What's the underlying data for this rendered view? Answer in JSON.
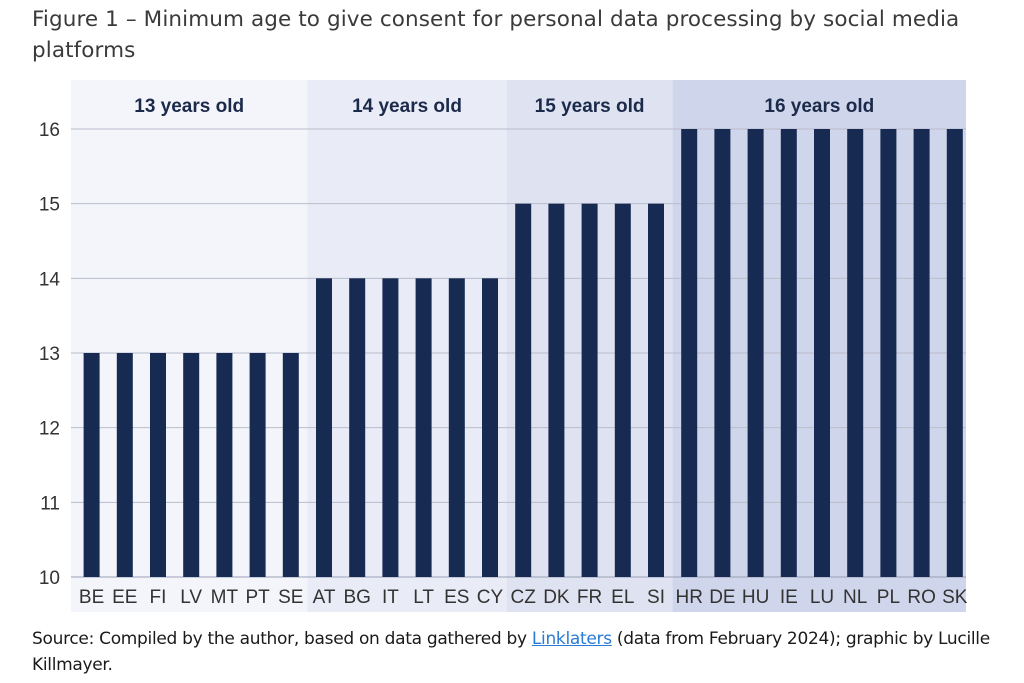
{
  "figure": {
    "title": "Figure 1 – Minimum age to give consent for personal data processing by social media platforms"
  },
  "source": {
    "prefix": "Source: Compiled by the author, based on data gathered by ",
    "link_text": "Linklaters",
    "suffix": " (data from February 2024); graphic by Lucille Killmayer."
  },
  "colors": {
    "bar": "#172a52",
    "group_bands": [
      "#f4f5fb",
      "#e9ebf6",
      "#dfe3f1",
      "#cfd5ea"
    ],
    "grid": "#b9bccb"
  },
  "chart_data": {
    "type": "bar",
    "title": "Minimum age to give consent for personal data processing by social media platforms",
    "xlabel": "",
    "ylabel": "",
    "ylim": [
      10,
      16
    ],
    "yticks": [
      10,
      11,
      12,
      13,
      14,
      15,
      16
    ],
    "grid": true,
    "legend": "none",
    "categories": [
      "BE",
      "EE",
      "FI",
      "LV",
      "MT",
      "PT",
      "SE",
      "AT",
      "BG",
      "IT",
      "LT",
      "ES",
      "CY",
      "CZ",
      "DK",
      "FR",
      "EL",
      "SI",
      "HR",
      "DE",
      "HU",
      "IE",
      "LU",
      "NL",
      "PL",
      "RO",
      "SK"
    ],
    "values": [
      13,
      13,
      13,
      13,
      13,
      13,
      13,
      14,
      14,
      14,
      14,
      14,
      14,
      15,
      15,
      15,
      15,
      15,
      16,
      16,
      16,
      16,
      16,
      16,
      16,
      16,
      16
    ],
    "groups": [
      {
        "label": "13 years old",
        "count": 7
      },
      {
        "label": "14 years old",
        "count": 6
      },
      {
        "label": "15 years old",
        "count": 5
      },
      {
        "label": "16 years old",
        "count": 9
      }
    ]
  }
}
